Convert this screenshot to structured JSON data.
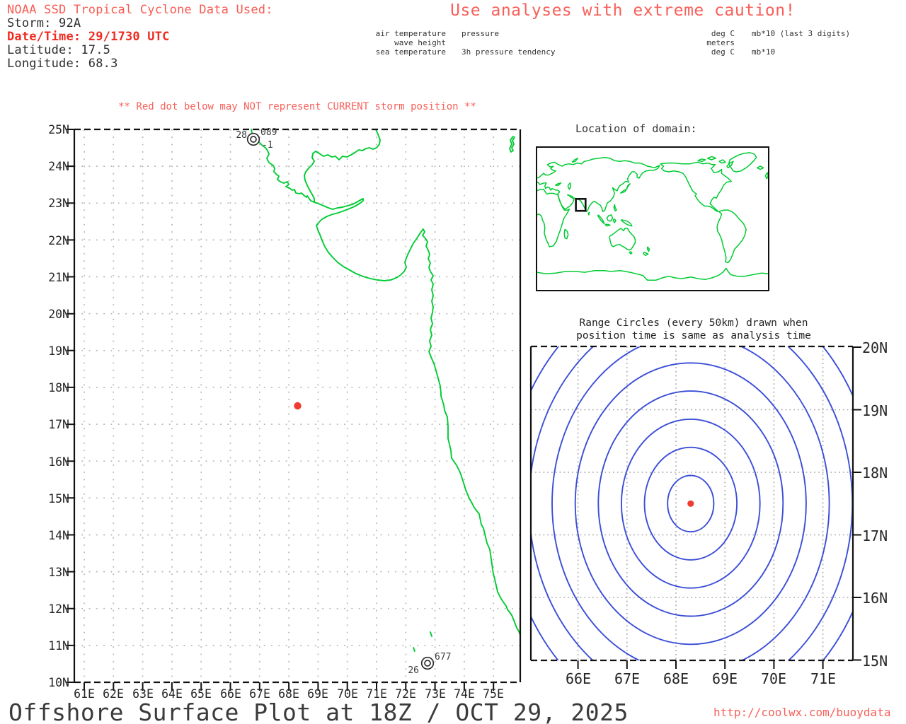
{
  "header": {
    "source_line": "NOAA SSD Tropical Cyclone Data Used:",
    "storm_line": "Storm: 92A",
    "datetime_line": "Date/Time: 29/1730 UTC",
    "latitude_line": "Latitude: 17.5",
    "longitude_line": "Longitude: 68.3",
    "caution": "Use analyses with extreme caution!"
  },
  "station_legend": {
    "labels_left": [
      "air temperature",
      "wave height",
      "sea temperature"
    ],
    "labels_right": [
      "pressure",
      "3h pressure tendency"
    ],
    "units_left": [
      "deg C",
      "meters",
      "deg C"
    ],
    "units_right": [
      "mb*10 (last 3 digits)",
      "mb*10"
    ]
  },
  "main_map": {
    "warning": "** Red dot below may NOT represent CURRENT storm position **",
    "lat_labels": [
      "25N",
      "24N",
      "23N",
      "22N",
      "21N",
      "20N",
      "19N",
      "18N",
      "17N",
      "16N",
      "15N",
      "14N",
      "13N",
      "12N",
      "11N",
      "10N"
    ],
    "lon_labels": [
      "61E",
      "62E",
      "63E",
      "64E",
      "65E",
      "66E",
      "67E",
      "68E",
      "69E",
      "70E",
      "71E",
      "72E",
      "73E",
      "74E",
      "75E"
    ],
    "storm_position": {
      "lat": 17.5,
      "lon": 68.3
    },
    "stations": [
      {
        "air_temp": "28",
        "pressure": "089",
        "tendency": "-1",
        "lat": 24.7,
        "lon": 66.8
      },
      {
        "air_temp": "26",
        "pressure": "677",
        "lat": 10.5,
        "lon": 72.7
      }
    ]
  },
  "domain_inset": {
    "title": "Location of domain:",
    "domain_box": {
      "lon_min": 61,
      "lon_max": 76,
      "lat_min": 10,
      "lat_max": 25
    }
  },
  "range_plot": {
    "title_line1": "Range Circles (every 50km) drawn when",
    "title_line2": "position time is same as analysis time",
    "lat_labels": [
      "20N",
      "19N",
      "18N",
      "17N",
      "16N",
      "15N"
    ],
    "lon_labels": [
      "66E",
      "67E",
      "68E",
      "69E",
      "70E",
      "71E"
    ],
    "circle_spacing_km": 50,
    "center": {
      "lat": 17.5,
      "lon": 68.3
    }
  },
  "footer": {
    "title": "Offshore Surface Plot at 18Z / OCT 29, 2025",
    "url": "http://coolwx.com/buoydata"
  },
  "colors": {
    "coastline": "#00cc33",
    "storm_dot": "#ef3b32",
    "range_circles": "#3b4ed8",
    "grid": "#b5b5b5",
    "grid_range": "#a8a8a8",
    "frame": "#111111",
    "station": "#2e2e2e"
  }
}
